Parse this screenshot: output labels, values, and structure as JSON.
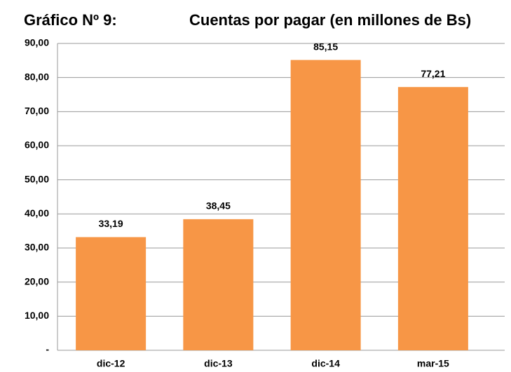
{
  "chart_data": {
    "type": "bar",
    "figure_label": "Gráfico Nº 9:",
    "title": "Cuentas por pagar (en millones de Bs)",
    "categories": [
      "dic-12",
      "dic-13",
      "dic-14",
      "mar-15"
    ],
    "values": [
      33.19,
      38.45,
      85.15,
      77.21
    ],
    "value_labels": [
      "33,19",
      "38,45",
      "85,15",
      "77,21"
    ],
    "color": "#f79646",
    "ylim": [
      0,
      90
    ],
    "yticks": [
      {
        "value": 0,
        "label": "-"
      },
      {
        "value": 10,
        "label": "10,00"
      },
      {
        "value": 20,
        "label": "20,00"
      },
      {
        "value": 30,
        "label": "30,00"
      },
      {
        "value": 40,
        "label": "40,00"
      },
      {
        "value": 50,
        "label": "50,00"
      },
      {
        "value": 60,
        "label": "60,00"
      },
      {
        "value": 70,
        "label": "70,00"
      },
      {
        "value": 80,
        "label": "80,00"
      },
      {
        "value": 90,
        "label": "90,00"
      }
    ],
    "grid": true
  }
}
